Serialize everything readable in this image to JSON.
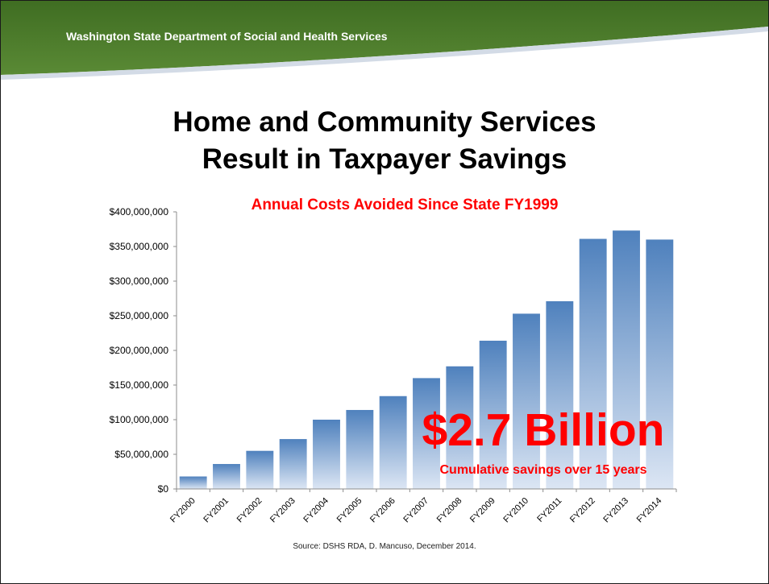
{
  "header": {
    "organization": "Washington State Department of Social and Health Services"
  },
  "slide": {
    "title_line1": "Home and Community Services",
    "title_line2": "Result in Taxpayer Savings",
    "callout_value": "$2.7 Billion",
    "callout_caption": "Cumulative savings over 15 years",
    "source": "Source: DSHS RDA, D. Mancuso, December 2014."
  },
  "colors": {
    "banner_green": "#4a7a2c",
    "accent_red": "#ff0000",
    "bar_top": "#4f81bd",
    "bar_bottom": "#dce6f4"
  },
  "chart_data": {
    "type": "bar",
    "title": "Annual Costs Avoided Since State FY1999",
    "categories": [
      "FY2000",
      "FY2001",
      "FY2002",
      "FY2003",
      "FY2004",
      "FY2005",
      "FY2006",
      "FY2007",
      "FY2008",
      "FY2009",
      "FY2010",
      "FY2011",
      "FY2012",
      "FY2013",
      "FY2014"
    ],
    "values": [
      18000000,
      36000000,
      55000000,
      72000000,
      100000000,
      114000000,
      134000000,
      160000000,
      177000000,
      214000000,
      253000000,
      271000000,
      361000000,
      373000000,
      360000000
    ],
    "ylim": [
      0,
      400000000
    ],
    "yticks": [
      "$0",
      "$50,000,000",
      "$100,000,000",
      "$150,000,000",
      "$200,000,000",
      "$250,000,000",
      "$300,000,000",
      "$350,000,000",
      "$400,000,000"
    ],
    "grid": false,
    "legend": "none"
  }
}
